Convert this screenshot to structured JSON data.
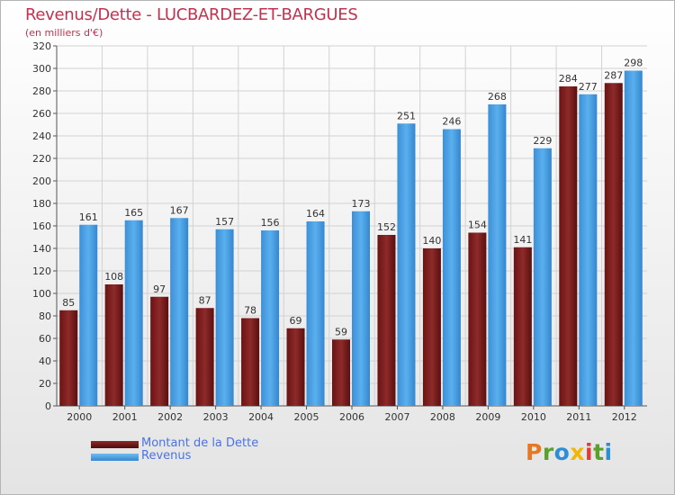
{
  "chart_data": {
    "type": "bar",
    "title": "Revenus/Dette - LUCBARDEZ-ET-BARGUES",
    "subtitle": "(en milliers d'€)",
    "categories": [
      "2000",
      "2001",
      "2002",
      "2003",
      "2004",
      "2005",
      "2006",
      "2007",
      "2008",
      "2009",
      "2010",
      "2011",
      "2012"
    ],
    "series": [
      {
        "name": "Montant de la Dette",
        "color": "#7a1a1a",
        "values": [
          85,
          108,
          97,
          87,
          78,
          69,
          59,
          152,
          140,
          154,
          141,
          284,
          287
        ]
      },
      {
        "name": "Revenus",
        "color": "#4a9fe0",
        "values": [
          161,
          165,
          167,
          157,
          156,
          164,
          173,
          251,
          246,
          268,
          229,
          277,
          298
        ]
      }
    ],
    "ylim": [
      0,
      320
    ],
    "yticks": [
      0,
      20,
      40,
      60,
      80,
      100,
      120,
      140,
      160,
      180,
      200,
      220,
      240,
      260,
      280,
      300,
      320
    ],
    "grid": true,
    "legend_position": "bottom-left"
  },
  "brand": {
    "letters": [
      "P",
      "r",
      "o",
      "x",
      "i",
      "t",
      "i"
    ],
    "colors": [
      "#e87722",
      "#5aa02c",
      "#2b8fd6",
      "#f2b705",
      "#e03a3a",
      "#5aa02c",
      "#2b8fd6"
    ]
  }
}
